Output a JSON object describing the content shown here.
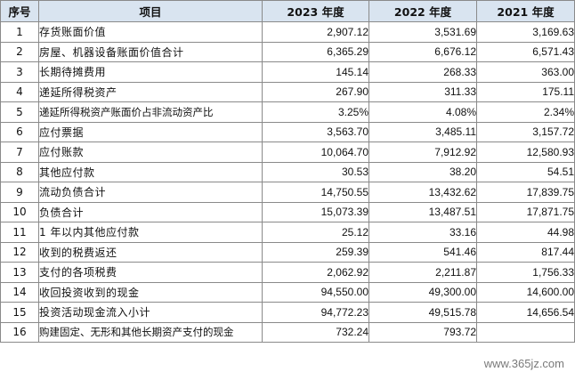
{
  "headers": {
    "no": "序号",
    "item": "项目",
    "y2023": "2023 年度",
    "y2022": "2022 年度",
    "y2021": "2021 年度"
  },
  "rows": [
    {
      "no": "1",
      "item": "存货账面价值",
      "v2023": "2,907.12",
      "v2022": "3,531.69",
      "v2021": "3,169.63"
    },
    {
      "no": "2",
      "item": "房屋、机器设备账面价值合计",
      "v2023": "6,365.29",
      "v2022": "6,676.12",
      "v2021": "6,571.43"
    },
    {
      "no": "3",
      "item": "长期待摊费用",
      "v2023": "145.14",
      "v2022": "268.33",
      "v2021": "363.00"
    },
    {
      "no": "4",
      "item": "递延所得税资产",
      "v2023": "267.90",
      "v2022": "311.33",
      "v2021": "175.11"
    },
    {
      "no": "5",
      "item": "递延所得税资产账面价占非流动资产比",
      "v2023": "3.25%",
      "v2022": "4.08%",
      "v2021": "2.34%"
    },
    {
      "no": "6",
      "item": "应付票据",
      "v2023": "3,563.70",
      "v2022": "3,485.11",
      "v2021": "3,157.72"
    },
    {
      "no": "7",
      "item": "应付账款",
      "v2023": "10,064.70",
      "v2022": "7,912.92",
      "v2021": "12,580.93"
    },
    {
      "no": "8",
      "item": "其他应付款",
      "v2023": "30.53",
      "v2022": "38.20",
      "v2021": "54.51"
    },
    {
      "no": "9",
      "item": "流动负债合计",
      "v2023": "14,750.55",
      "v2022": "13,432.62",
      "v2021": "17,839.75"
    },
    {
      "no": "10",
      "item": "负债合计",
      "v2023": "15,073.39",
      "v2022": "13,487.51",
      "v2021": "17,871.75"
    },
    {
      "no": "11",
      "item": "1 年以内其他应付款",
      "v2023": "25.12",
      "v2022": "33.16",
      "v2021": "44.98"
    },
    {
      "no": "12",
      "item": "收到的税费返还",
      "v2023": "259.39",
      "v2022": "541.46",
      "v2021": "817.44"
    },
    {
      "no": "13",
      "item": "支付的各项税费",
      "v2023": "2,062.92",
      "v2022": "2,211.87",
      "v2021": "1,756.33"
    },
    {
      "no": "14",
      "item": "收回投资收到的现金",
      "v2023": "94,550.00",
      "v2022": "49,300.00",
      "v2021": "14,600.00"
    },
    {
      "no": "15",
      "item": "投资活动现金流入小计",
      "v2023": "94,772.23",
      "v2022": "49,515.78",
      "v2021": "14,656.54"
    },
    {
      "no": "16",
      "item": "购建固定、无形和其他长期资产支付的现金",
      "v2023": "732.24",
      "v2022": "793.72",
      "v2021": ""
    }
  ],
  "watermark": "www.365jz.com"
}
